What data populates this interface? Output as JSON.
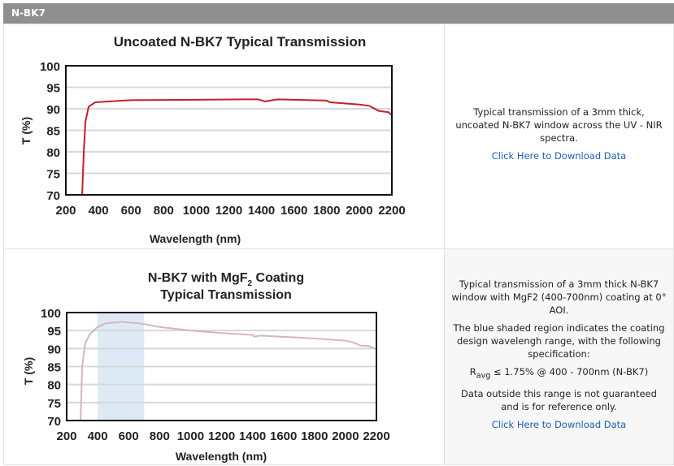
{
  "section_title": "N-BK7",
  "rows": [
    {
      "description": [
        "Typical transmission of a 3mm thick, uncoated N-BK7 window across the UV - NIR spectra."
      ],
      "download_link": "Click Here to Download Data"
    },
    {
      "description": [
        "Typical transmission of a 3mm thick N-BK7 window with MgF2 (400-700nm) coating at 0° AOI.",
        "The blue shaded region indicates the coating design wavelengh range, with the following specification:"
      ],
      "spec": {
        "r": "R",
        "sub": "avg",
        "rest": " ≤ 1.75% @ 400 - 700nm (N-BK7)"
      },
      "note": "Data outside this range is not guaranteed and is for reference only.",
      "download_link": "Click Here to Download Data"
    }
  ],
  "chart_data": [
    {
      "type": "line",
      "title": "Uncoated N-BK7 Typical Transmission",
      "xlabel": "Wavelength (nm)",
      "ylabel": "T (%)",
      "xlim": [
        200,
        2200
      ],
      "ylim": [
        70,
        100
      ],
      "xticks": [
        200,
        400,
        600,
        800,
        1000,
        1200,
        1400,
        1600,
        1800,
        2000,
        2200
      ],
      "yticks": [
        70,
        75,
        80,
        85,
        90,
        95,
        100
      ],
      "grid": true,
      "color": "#c0202a",
      "x": [
        300,
        310,
        320,
        340,
        380,
        500,
        600,
        1000,
        1300,
        1380,
        1420,
        1500,
        1800,
        1820,
        2000,
        2060,
        2120,
        2180,
        2200
      ],
      "y": [
        70,
        80,
        87,
        90.5,
        91.5,
        91.8,
        92,
        92.1,
        92.2,
        92.2,
        91.7,
        92.2,
        91.9,
        91.5,
        91,
        90.7,
        89.5,
        89.2,
        88.5
      ]
    },
    {
      "type": "line",
      "title": [
        "N-BK7 with MgF",
        "2",
        " Coating",
        "Typical Transmission"
      ],
      "xlabel": "Wavelength (nm)",
      "ylabel": "T (%)",
      "xlim": [
        200,
        2200
      ],
      "ylim": [
        70,
        100
      ],
      "xticks": [
        200,
        400,
        600,
        800,
        1000,
        1200,
        1400,
        1600,
        1800,
        2000,
        2200
      ],
      "yticks": [
        70,
        75,
        80,
        85,
        90,
        95,
        100
      ],
      "grid": true,
      "color": "#d4b6bf",
      "shaded_region": {
        "x": [
          400,
          700
        ],
        "color": "#dde9f5"
      },
      "x": [
        290,
        300,
        320,
        350,
        400,
        450,
        550,
        650,
        700,
        800,
        1000,
        1200,
        1400,
        1410,
        1450,
        1800,
        2000,
        2050,
        2100,
        2150,
        2200
      ],
      "y": [
        70,
        85,
        91.5,
        94,
        96,
        97,
        97.4,
        97.1,
        96.8,
        96,
        95,
        94.3,
        93.8,
        93.3,
        93.6,
        92.8,
        92.2,
        91.7,
        90.8,
        90.7,
        89.8
      ]
    }
  ]
}
